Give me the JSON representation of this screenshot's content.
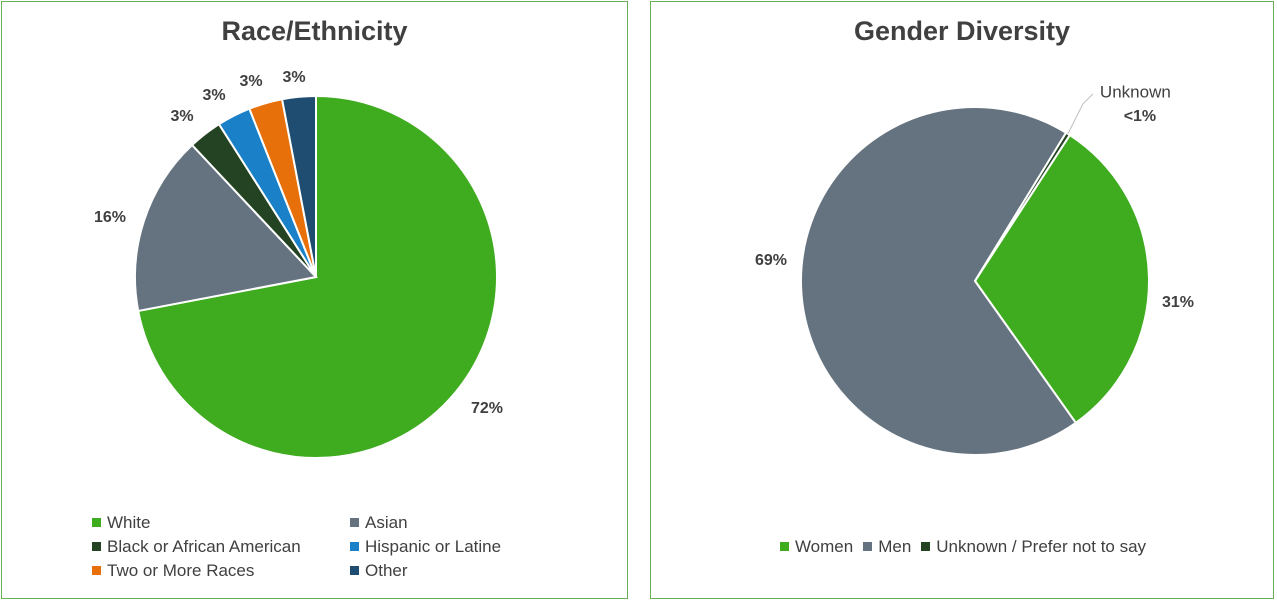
{
  "chart_data": [
    {
      "type": "pie",
      "title": "Race/Ethnicity",
      "categories": [
        "White",
        "Asian",
        "Black or African American",
        "Hispanic or Latine",
        "Two or More Races",
        "Other"
      ],
      "values": [
        72,
        16,
        3,
        3,
        3,
        3
      ],
      "labels": [
        "72%",
        "16%",
        "3%",
        "3%",
        "3%",
        "3%"
      ],
      "colors": [
        "#3fab1f",
        "#64737f",
        "#244323",
        "#1a80c8",
        "#e8700a",
        "#1f4d72"
      ],
      "legend": "bottom"
    },
    {
      "type": "pie",
      "title": "Gender Diversity",
      "categories": [
        "Women",
        "Men",
        "Unknown / Prefer not to say"
      ],
      "values": [
        31,
        68.6,
        0.4
      ],
      "labels": [
        "31%",
        "69%",
        "<1%"
      ],
      "callout": {
        "name": "Unknown",
        "label": "<1%"
      },
      "colors": [
        "#3fab1f",
        "#64737f",
        "#244323"
      ],
      "legend": "bottom"
    }
  ]
}
